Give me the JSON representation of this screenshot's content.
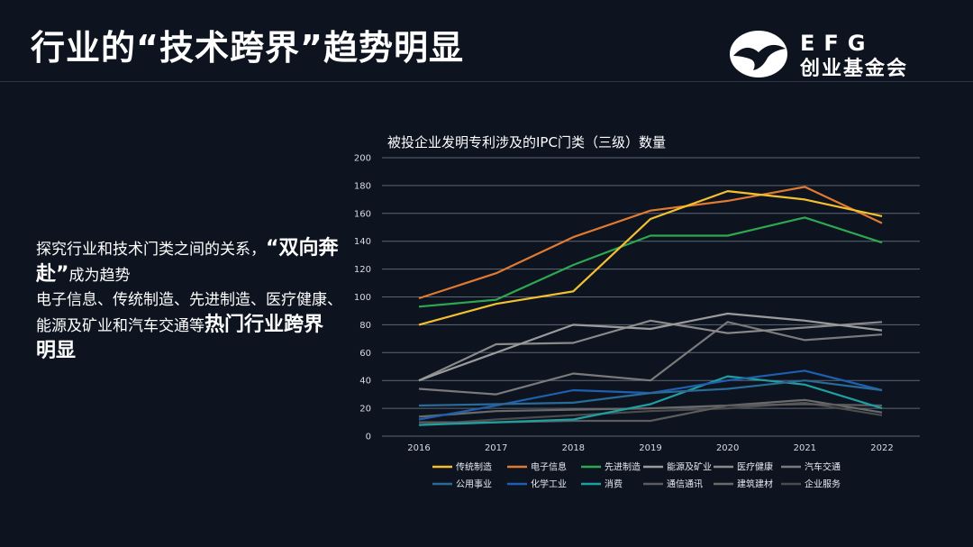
{
  "slide": {
    "title": "行业的“技术跨界”趋势明显"
  },
  "logo": {
    "top": "EFG",
    "bottom": "创业基金会"
  },
  "description": {
    "line1_pre": "探究行业和技术门类之间的关系，",
    "line1_highlight": "“双向奔赴”",
    "line1_post": "成为趋势",
    "line2_pre": "电子信息、传统制造、先进制造、医疗健康、能源及矿业和汽车交通等",
    "line2_highlight": "热门行业跨界明显"
  },
  "chart_data": {
    "type": "line",
    "title": "被投企业发明专利涉及的IPC门类（三级）数量",
    "x": [
      "2016",
      "2017",
      "2018",
      "2019",
      "2020",
      "2021",
      "2022"
    ],
    "ylim": [
      0,
      200
    ],
    "yticks": [
      "0",
      "20",
      "40",
      "60",
      "80",
      "100",
      "120",
      "140",
      "160",
      "180",
      "200"
    ],
    "grid": true,
    "legend_position": "bottom",
    "series": [
      {
        "name": "传统制造",
        "color": "#f5c02f",
        "values": [
          80,
          95,
          104,
          156,
          176,
          170,
          158
        ]
      },
      {
        "name": "电子信息",
        "color": "#e07a31",
        "values": [
          99,
          117,
          143,
          162,
          169,
          179,
          153
        ]
      },
      {
        "name": "先进制造",
        "color": "#2ea84f",
        "values": [
          93,
          98,
          123,
          144,
          144,
          157,
          139
        ]
      },
      {
        "name": "能源及矿业",
        "color": "#9b9b9b",
        "values": [
          40,
          60,
          80,
          77,
          88,
          83,
          76
        ]
      },
      {
        "name": "医疗健康",
        "color": "#8a8a8a",
        "values": [
          40,
          66,
          67,
          83,
          74,
          78,
          82
        ]
      },
      {
        "name": "汽车交通",
        "color": "#7a7a7a",
        "values": [
          34,
          30,
          45,
          40,
          82,
          69,
          73
        ]
      },
      {
        "name": "公用事业",
        "color": "#2a6a96",
        "values": [
          22,
          23,
          24,
          31,
          34,
          40,
          33
        ]
      },
      {
        "name": "化学工业",
        "color": "#1f5fb0",
        "values": [
          12,
          22,
          33,
          31,
          40,
          47,
          33
        ]
      },
      {
        "name": "消费",
        "color": "#1f9fa0",
        "values": [
          8,
          10,
          12,
          23,
          43,
          37,
          20
        ]
      },
      {
        "name": "通信通讯",
        "color": "#5c5c5c",
        "values": [
          10,
          10,
          11,
          11,
          22,
          23,
          22
        ]
      },
      {
        "name": "建筑建材",
        "color": "#6a6a6a",
        "values": [
          14,
          18,
          19,
          20,
          22,
          26,
          17
        ]
      },
      {
        "name": "企业服务",
        "color": "#4c4c4c",
        "values": [
          8,
          12,
          15,
          18,
          20,
          24,
          15
        ]
      }
    ]
  }
}
